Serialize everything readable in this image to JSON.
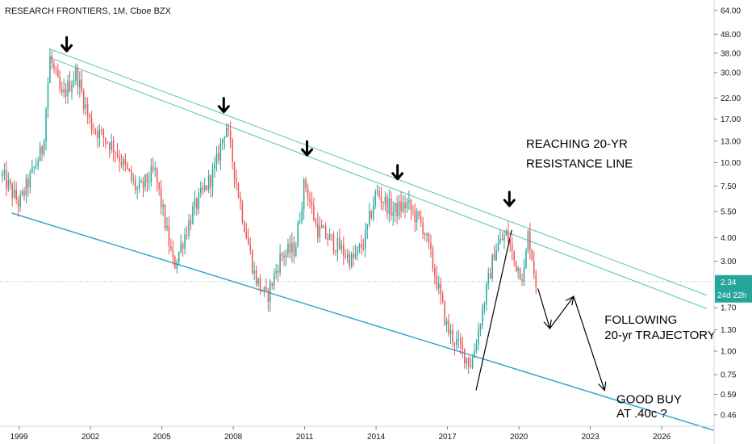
{
  "chart_data": {
    "type": "candlestick",
    "title": "RESEARCH FRONTIERS, 1M, Cboe BZX",
    "y_scale": "log",
    "ylim": [
      0.4,
      70
    ],
    "xlim": [
      1998.2,
      2028.2
    ],
    "y_ticks": [
      "64.00",
      "48.00",
      "38.00",
      "30.00",
      "22.00",
      "17.00",
      "13.00",
      "10.00",
      "7.50",
      "5.50",
      "4.00",
      "3.00",
      "2.34",
      "1.70",
      "1.30",
      "1.00",
      "0.75",
      "0.59",
      "0.46"
    ],
    "x_ticks": [
      "1999",
      "2002",
      "2005",
      "2008",
      "2011",
      "2014",
      "2017",
      "2020",
      "2023",
      "2026"
    ],
    "colors": {
      "up": "#26a69a",
      "down": "#ef5350",
      "trend": "#50c8b4",
      "support": "#2e9fd0",
      "tag": "#26a69a"
    },
    "price_tag": {
      "value": 2.34,
      "label": "2.34",
      "countdown": "24d 22h"
    },
    "key_points": [
      {
        "x": 1998.3,
        "y": 8.5
      },
      {
        "x": 1999.0,
        "y": 6.0
      },
      {
        "x": 2000.0,
        "y": 12.0
      },
      {
        "x": 2000.3,
        "y": 36.0
      },
      {
        "x": 2000.8,
        "y": 22.0
      },
      {
        "x": 2001.4,
        "y": 30.0
      },
      {
        "x": 2002.0,
        "y": 16.0
      },
      {
        "x": 2003.0,
        "y": 12.0
      },
      {
        "x": 2004.0,
        "y": 7.0
      },
      {
        "x": 2004.7,
        "y": 9.0
      },
      {
        "x": 2005.5,
        "y": 2.8
      },
      {
        "x": 2006.3,
        "y": 5.5
      },
      {
        "x": 2007.2,
        "y": 9.0
      },
      {
        "x": 2007.7,
        "y": 16.0
      },
      {
        "x": 2008.3,
        "y": 6.0
      },
      {
        "x": 2008.9,
        "y": 2.5
      },
      {
        "x": 2009.4,
        "y": 1.9
      },
      {
        "x": 2010.0,
        "y": 3.2
      },
      {
        "x": 2010.6,
        "y": 3.5
      },
      {
        "x": 2011.0,
        "y": 8.0
      },
      {
        "x": 2011.5,
        "y": 4.5
      },
      {
        "x": 2012.5,
        "y": 3.5
      },
      {
        "x": 2013.0,
        "y": 3.0
      },
      {
        "x": 2013.5,
        "y": 3.8
      },
      {
        "x": 2014.0,
        "y": 7.0
      },
      {
        "x": 2014.7,
        "y": 5.5
      },
      {
        "x": 2015.3,
        "y": 6.0
      },
      {
        "x": 2016.0,
        "y": 4.5
      },
      {
        "x": 2016.5,
        "y": 2.5
      },
      {
        "x": 2017.0,
        "y": 1.3
      },
      {
        "x": 2017.5,
        "y": 1.05
      },
      {
        "x": 2018.0,
        "y": 0.85
      },
      {
        "x": 2018.3,
        "y": 1.3
      },
      {
        "x": 2018.6,
        "y": 2.0
      },
      {
        "x": 2019.0,
        "y": 3.5
      },
      {
        "x": 2019.5,
        "y": 4.2
      },
      {
        "x": 2019.8,
        "y": 3.0
      },
      {
        "x": 2020.2,
        "y": 2.5
      },
      {
        "x": 2020.4,
        "y": 4.3
      },
      {
        "x": 2020.7,
        "y": 2.34
      }
    ],
    "resistance_upper": {
      "start": [
        2000.3,
        40.0
      ],
      "end": [
        2027.9,
        1.98
      ]
    },
    "resistance_lower": {
      "start": [
        2000.3,
        36.0
      ],
      "end": [
        2027.9,
        1.68
      ]
    },
    "support_line": {
      "start": [
        1998.7,
        5.4
      ],
      "end": [
        2028.2,
        0.38
      ]
    },
    "breakout_line": {
      "start": [
        2018.2,
        0.62
      ],
      "end": [
        2019.7,
        4.4
      ]
    },
    "projection_path": [
      [
        2020.8,
        2.15
      ],
      [
        2021.3,
        1.32
      ],
      [
        2022.3,
        1.95
      ],
      [
        2023.6,
        0.62
      ]
    ],
    "pivot_arrows": [
      {
        "x": 2001.0,
        "y": 41.0
      },
      {
        "x": 2007.6,
        "y": 19.5
      },
      {
        "x": 2011.1,
        "y": 11.5
      },
      {
        "x": 2014.9,
        "y": 8.6
      },
      {
        "x": 2019.6,
        "y": 6.2
      }
    ],
    "annotations": [
      {
        "text": "REACHING 20-YR",
        "x": 2020.3,
        "y": 12.0
      },
      {
        "text": "RESISTANCE LINE",
        "x": 2020.3,
        "y": 9.4
      },
      {
        "text": "FOLLOWING",
        "x": 2023.6,
        "y": 1.4
      },
      {
        "text": "20-yr TRAJECTORY",
        "x": 2023.6,
        "y": 1.16
      },
      {
        "text": "GOOD BUY",
        "x": 2024.1,
        "y": 0.53
      },
      {
        "text": "AT .40c ?",
        "x": 2024.1,
        "y": 0.445
      }
    ]
  }
}
